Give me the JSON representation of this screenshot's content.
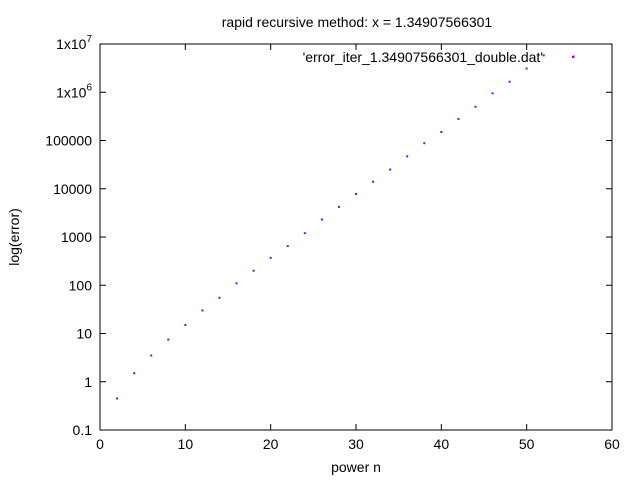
{
  "chart_data": {
    "type": "scatter",
    "title": "rapid recursive method: x = 1.34907566301",
    "xlabel": "power n",
    "ylabel": "log(error)",
    "xlim": [
      0,
      60
    ],
    "ylim": [
      0.1,
      10000000
    ],
    "y_scale": "log",
    "x_ticks": [
      0,
      10,
      20,
      30,
      40,
      50,
      60
    ],
    "y_ticks": [
      {
        "value": 0.1,
        "base": "0.1",
        "sup": ""
      },
      {
        "value": 1,
        "base": "1",
        "sup": ""
      },
      {
        "value": 10,
        "base": "10",
        "sup": ""
      },
      {
        "value": 100,
        "base": "100",
        "sup": ""
      },
      {
        "value": 1000,
        "base": "1000",
        "sup": ""
      },
      {
        "value": 10000,
        "base": "10000",
        "sup": ""
      },
      {
        "value": 100000,
        "base": "100000",
        "sup": ""
      },
      {
        "value": 1000000,
        "base": "1x10",
        "sup": "6"
      },
      {
        "value": 10000000,
        "base": "1x10",
        "sup": "7"
      }
    ],
    "grid": false,
    "legend": {
      "label": "'error_iter_1.34907566301_double.dat'",
      "placement": "top-right"
    },
    "point_color": "#9400d3",
    "series": [
      {
        "name": "'error_iter_1.34907566301_double.dat'",
        "x": [
          2,
          4,
          6,
          8,
          10,
          12,
          14,
          16,
          18,
          20,
          22,
          24,
          26,
          28,
          30,
          32,
          34,
          36,
          38,
          40,
          42,
          44,
          46,
          48,
          50,
          52,
          55.5
        ],
        "y": [
          0.45,
          1.5,
          3.5,
          7.5,
          15,
          30,
          55,
          110,
          200,
          370,
          650,
          1200,
          2300,
          4200,
          7800,
          14000,
          25000,
          47000,
          88000,
          150000,
          280000,
          500000,
          950000,
          1650000,
          3100000,
          5800000,
          5500000
        ]
      }
    ]
  }
}
